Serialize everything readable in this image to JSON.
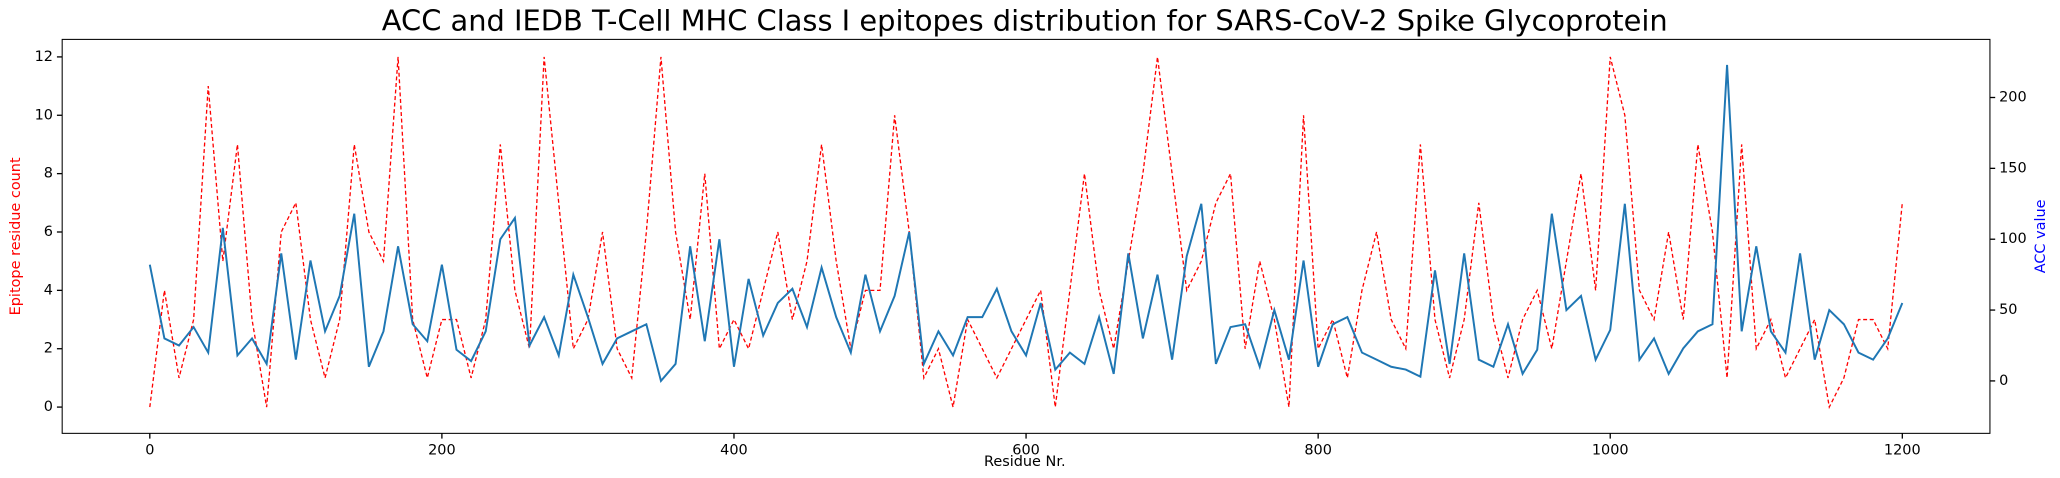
{
  "chart_data": {
    "type": "line",
    "title": "ACC and IEDB T-Cell MHC Class I epitopes distribution for SARS-CoV-2 Spike Glycoprotein",
    "xlabel": "Residue Nr.",
    "ylabel": "Epitope residue count",
    "y2label": "ACC value",
    "ylabel_color": "#ff0000",
    "y2label_color": "#0000ff",
    "x": [
      0,
      10,
      20,
      30,
      40,
      50,
      60,
      70,
      80,
      90,
      100,
      110,
      120,
      130,
      140,
      150,
      160,
      170,
      180,
      190,
      200,
      210,
      220,
      230,
      240,
      250,
      260,
      270,
      280,
      290,
      300,
      310,
      320,
      330,
      340,
      350,
      360,
      370,
      380,
      390,
      400,
      410,
      420,
      430,
      440,
      450,
      460,
      470,
      480,
      490,
      500,
      510,
      520,
      530,
      540,
      550,
      560,
      570,
      580,
      590,
      600,
      610,
      620,
      630,
      640,
      650,
      660,
      670,
      680,
      690,
      700,
      710,
      720,
      730,
      740,
      750,
      760,
      770,
      780,
      790,
      800,
      810,
      820,
      830,
      840,
      850,
      860,
      870,
      880,
      890,
      900,
      910,
      920,
      930,
      940,
      950,
      960,
      970,
      980,
      990,
      1000,
      1010,
      1020,
      1030,
      1040,
      1050,
      1060,
      1070,
      1080,
      1090,
      1100,
      1110,
      1120,
      1130,
      1140,
      1150,
      1160,
      1170,
      1180,
      1190,
      1200
    ],
    "series": [
      {
        "name": "Epitope residue count",
        "color": "#ff0000",
        "dashed": true,
        "axis": "y",
        "values": [
          0,
          4,
          1,
          3,
          11,
          5,
          9,
          3,
          0,
          6,
          7,
          3,
          1,
          3,
          9,
          6,
          5,
          12,
          3,
          1,
          3,
          3,
          1,
          3,
          9,
          4,
          2,
          12,
          7,
          2,
          3,
          6,
          2,
          1,
          6,
          12,
          6,
          3,
          8,
          2,
          3,
          2,
          4,
          6,
          3,
          5,
          9,
          5,
          2,
          4,
          4,
          10,
          6,
          1,
          2,
          0,
          3,
          2,
          1,
          2,
          3,
          4,
          0,
          4,
          8,
          4,
          2,
          5,
          8,
          12,
          8,
          4,
          5,
          7,
          8,
          2,
          5,
          3,
          0,
          10,
          2,
          3,
          1,
          4,
          6,
          3,
          2,
          9,
          3,
          1,
          3,
          7,
          3,
          1,
          3,
          4,
          2,
          5,
          8,
          4,
          12,
          10,
          4,
          3,
          6,
          3,
          9,
          6,
          1,
          9,
          2,
          3,
          1,
          2,
          3,
          0,
          1,
          3,
          3,
          2,
          7
        ]
      },
      {
        "name": "ACC value",
        "color": "#1f77b4",
        "dashed": false,
        "axis": "y2",
        "values": [
          82,
          30,
          25,
          38,
          20,
          108,
          18,
          30,
          12,
          90,
          15,
          85,
          35,
          60,
          118,
          10,
          35,
          95,
          40,
          28,
          82,
          22,
          14,
          35,
          100,
          115,
          25,
          45,
          18,
          75,
          45,
          12,
          30,
          35,
          40,
          0,
          12,
          95,
          28,
          100,
          10,
          72,
          32,
          55,
          65,
          38,
          80,
          45,
          20,
          75,
          35,
          60,
          105,
          12,
          35,
          18,
          45,
          45,
          65,
          35,
          18,
          55,
          8,
          20,
          12,
          45,
          5,
          90,
          30,
          75,
          15,
          88,
          125,
          12,
          38,
          40,
          10,
          50,
          15,
          85,
          10,
          40,
          45,
          20,
          15,
          10,
          8,
          3,
          78,
          12,
          90,
          15,
          10,
          40,
          5,
          22,
          118,
          50,
          60,
          15,
          36,
          125,
          15,
          30,
          5,
          23,
          35,
          40,
          223,
          35,
          95,
          35,
          20,
          90,
          15,
          50,
          40,
          20,
          15,
          30,
          55
        ]
      }
    ],
    "xlim": [
      -60,
      1260
    ],
    "xticks": [
      0,
      200,
      400,
      600,
      800,
      1000,
      1200
    ],
    "ylim": [
      -0.9,
      12.6
    ],
    "yticks": [
      0,
      2,
      4,
      6,
      8,
      10,
      12
    ],
    "y2lim": [
      -37,
      241
    ],
    "y2ticks": [
      0,
      50,
      100,
      150,
      200
    ]
  }
}
